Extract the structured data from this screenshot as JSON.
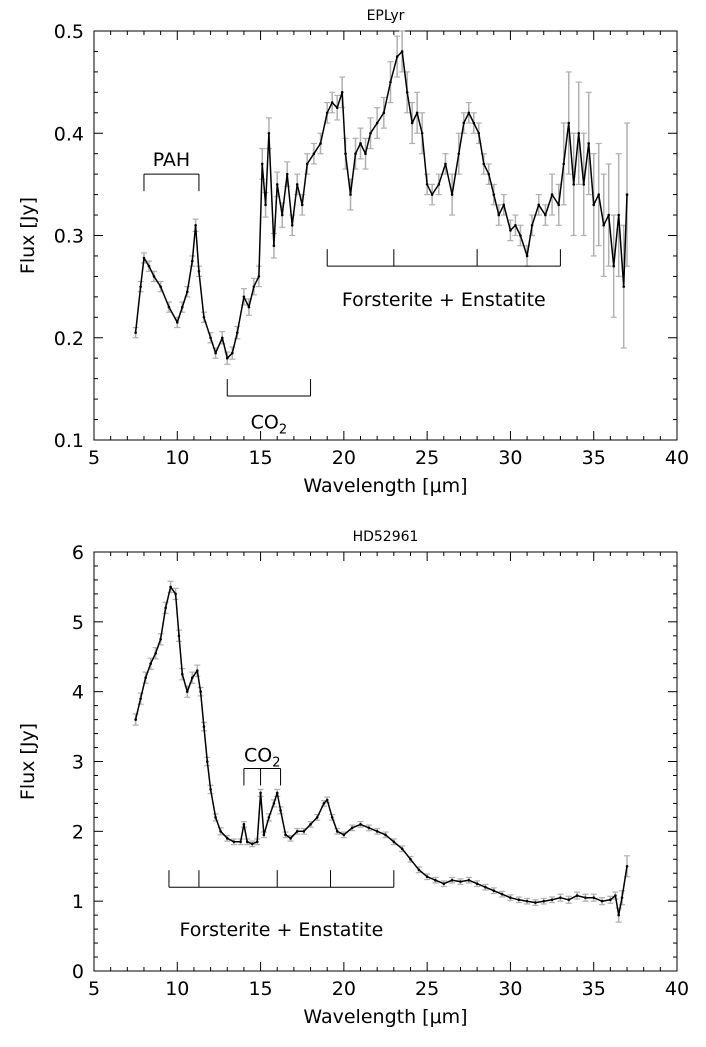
{
  "chart_data": [
    {
      "type": "line",
      "title": "EPLyr",
      "xlabel": "Wavelength [μm]",
      "ylabel": "Flux [Jy]",
      "xlim": [
        5,
        40
      ],
      "ylim": [
        0.1,
        0.5
      ],
      "xticks": [
        5,
        10,
        15,
        20,
        25,
        30,
        35,
        40
      ],
      "yticks": [
        0.1,
        0.2,
        0.3,
        0.4,
        0.5
      ],
      "grid": false,
      "error_bar_color": "#b0b0b0",
      "line_color": "#000000",
      "series": [
        {
          "x": [
            7.5,
            7.8,
            8.0,
            8.3,
            8.6,
            9.0,
            9.5,
            10.0,
            10.3,
            10.6,
            10.9,
            11.1,
            11.3,
            11.6,
            12.0,
            12.3,
            12.7,
            13.0,
            13.3,
            13.6,
            14.0,
            14.3,
            14.6,
            14.9,
            15.1,
            15.3,
            15.5,
            15.8,
            16.0,
            16.3,
            16.6,
            16.9,
            17.2,
            17.5,
            17.8,
            18.2,
            18.6,
            19.0,
            19.3,
            19.6,
            19.9,
            20.1,
            20.4,
            20.7,
            21.0,
            21.3,
            21.6,
            22.0,
            22.4,
            22.8,
            23.2,
            23.5,
            23.8,
            24.1,
            24.4,
            24.7,
            25.0,
            25.3,
            25.7,
            26.1,
            26.5,
            26.9,
            27.2,
            27.5,
            27.8,
            28.1,
            28.4,
            28.7,
            29.0,
            29.3,
            29.6,
            30.0,
            30.3,
            30.6,
            31.0,
            31.3,
            31.7,
            32.1,
            32.5,
            32.9,
            33.2,
            33.5,
            33.8,
            34.1,
            34.4,
            34.7,
            35.0,
            35.3,
            35.6,
            35.9,
            36.2,
            36.5,
            36.8,
            37.0
          ],
          "y": [
            0.205,
            0.25,
            0.278,
            0.27,
            0.26,
            0.25,
            0.23,
            0.215,
            0.23,
            0.245,
            0.275,
            0.31,
            0.265,
            0.22,
            0.2,
            0.185,
            0.2,
            0.18,
            0.185,
            0.205,
            0.24,
            0.23,
            0.25,
            0.26,
            0.37,
            0.33,
            0.4,
            0.29,
            0.35,
            0.32,
            0.36,
            0.31,
            0.35,
            0.33,
            0.37,
            0.38,
            0.39,
            0.42,
            0.43,
            0.425,
            0.44,
            0.38,
            0.34,
            0.38,
            0.39,
            0.38,
            0.4,
            0.41,
            0.42,
            0.45,
            0.475,
            0.48,
            0.44,
            0.41,
            0.42,
            0.4,
            0.35,
            0.34,
            0.35,
            0.37,
            0.34,
            0.38,
            0.41,
            0.42,
            0.41,
            0.4,
            0.37,
            0.36,
            0.34,
            0.32,
            0.33,
            0.305,
            0.31,
            0.3,
            0.28,
            0.31,
            0.33,
            0.32,
            0.34,
            0.33,
            0.37,
            0.41,
            0.35,
            0.4,
            0.35,
            0.39,
            0.33,
            0.34,
            0.31,
            0.32,
            0.27,
            0.32,
            0.25,
            0.34
          ],
          "err": [
            0.005,
            0.005,
            0.005,
            0.005,
            0.005,
            0.005,
            0.005,
            0.005,
            0.005,
            0.005,
            0.005,
            0.006,
            0.005,
            0.005,
            0.005,
            0.005,
            0.006,
            0.006,
            0.006,
            0.006,
            0.008,
            0.008,
            0.008,
            0.01,
            0.015,
            0.012,
            0.015,
            0.012,
            0.012,
            0.012,
            0.012,
            0.01,
            0.01,
            0.01,
            0.01,
            0.01,
            0.01,
            0.01,
            0.01,
            0.012,
            0.015,
            0.015,
            0.015,
            0.015,
            0.015,
            0.015,
            0.015,
            0.015,
            0.015,
            0.02,
            0.02,
            0.02,
            0.02,
            0.02,
            0.02,
            0.02,
            0.01,
            0.01,
            0.01,
            0.01,
            0.02,
            0.02,
            0.01,
            0.01,
            0.01,
            0.01,
            0.01,
            0.01,
            0.01,
            0.01,
            0.01,
            0.01,
            0.01,
            0.01,
            0.01,
            0.01,
            0.01,
            0.01,
            0.02,
            0.02,
            0.04,
            0.05,
            0.05,
            0.05,
            0.05,
            0.05,
            0.05,
            0.05,
            0.05,
            0.05,
            0.05,
            0.06,
            0.06,
            0.07
          ]
        }
      ],
      "annotations": [
        {
          "label": "PAH",
          "bracket": [
            8,
            11.3
          ],
          "ticks": [],
          "y": 0.36,
          "direction": "down",
          "label_y": 0.375
        },
        {
          "label": "CO",
          "subscript": "2",
          "bracket": [
            13,
            18
          ],
          "ticks": [],
          "y": 0.143,
          "direction": "up",
          "label_y": 0.118
        },
        {
          "label": "Forsterite + Enstatite",
          "bracket": [
            19,
            33
          ],
          "ticks": [
            23,
            28
          ],
          "y": 0.27,
          "direction": "up",
          "label_y": 0.238
        }
      ]
    },
    {
      "type": "line",
      "title": "HD52961",
      "xlabel": "Wavelength [μm]",
      "ylabel": "Flux [Jy]",
      "xlim": [
        5,
        40
      ],
      "ylim": [
        0,
        6
      ],
      "xticks": [
        5,
        10,
        15,
        20,
        25,
        30,
        35,
        40
      ],
      "yticks": [
        0,
        1,
        2,
        3,
        4,
        5,
        6
      ],
      "grid": false,
      "error_bar_color": "#b0b0b0",
      "line_color": "#000000",
      "series": [
        {
          "x": [
            7.5,
            7.8,
            8.1,
            8.4,
            8.7,
            9.0,
            9.3,
            9.6,
            9.9,
            10.1,
            10.3,
            10.6,
            10.9,
            11.2,
            11.4,
            11.6,
            11.8,
            12.0,
            12.3,
            12.6,
            13.0,
            13.4,
            13.8,
            14.0,
            14.2,
            14.5,
            14.8,
            15.0,
            15.2,
            15.5,
            15.8,
            16.0,
            16.2,
            16.5,
            16.8,
            17.2,
            17.6,
            18.0,
            18.4,
            18.8,
            19.0,
            19.3,
            19.6,
            20.0,
            20.5,
            21.0,
            21.5,
            22.0,
            22.5,
            23.0,
            23.5,
            24.0,
            24.5,
            25.0,
            25.5,
            26.0,
            26.5,
            27.0,
            27.5,
            28.0,
            28.5,
            29.0,
            29.5,
            30.0,
            30.5,
            31.0,
            31.5,
            32.0,
            32.5,
            33.0,
            33.5,
            34.0,
            34.5,
            35.0,
            35.5,
            36.0,
            36.3,
            36.5,
            36.7,
            37.0
          ],
          "y": [
            3.6,
            3.9,
            4.2,
            4.4,
            4.55,
            4.75,
            5.2,
            5.5,
            5.4,
            4.8,
            4.25,
            4.0,
            4.2,
            4.3,
            4.0,
            3.5,
            3.0,
            2.6,
            2.2,
            2.0,
            1.9,
            1.85,
            1.85,
            2.1,
            1.85,
            1.82,
            1.85,
            2.55,
            1.95,
            2.2,
            2.4,
            2.55,
            2.3,
            1.95,
            1.9,
            2.0,
            2.0,
            2.1,
            2.2,
            2.4,
            2.45,
            2.2,
            2.0,
            1.95,
            2.05,
            2.1,
            2.05,
            2.0,
            1.95,
            1.85,
            1.75,
            1.6,
            1.45,
            1.35,
            1.3,
            1.25,
            1.3,
            1.28,
            1.3,
            1.25,
            1.2,
            1.15,
            1.1,
            1.05,
            1.02,
            1.0,
            0.98,
            1.0,
            1.02,
            1.05,
            1.02,
            1.08,
            1.05,
            1.05,
            1.0,
            1.02,
            1.08,
            0.8,
            1.05,
            1.5
          ],
          "err": [
            0.08,
            0.08,
            0.08,
            0.08,
            0.08,
            0.08,
            0.08,
            0.08,
            0.08,
            0.08,
            0.08,
            0.08,
            0.08,
            0.08,
            0.06,
            0.06,
            0.06,
            0.06,
            0.05,
            0.05,
            0.04,
            0.04,
            0.04,
            0.04,
            0.04,
            0.04,
            0.04,
            0.05,
            0.04,
            0.05,
            0.05,
            0.05,
            0.05,
            0.04,
            0.04,
            0.04,
            0.04,
            0.04,
            0.04,
            0.04,
            0.04,
            0.04,
            0.04,
            0.04,
            0.04,
            0.04,
            0.04,
            0.04,
            0.04,
            0.04,
            0.04,
            0.04,
            0.04,
            0.04,
            0.04,
            0.04,
            0.04,
            0.04,
            0.04,
            0.04,
            0.04,
            0.04,
            0.04,
            0.04,
            0.04,
            0.04,
            0.04,
            0.04,
            0.04,
            0.05,
            0.05,
            0.05,
            0.05,
            0.05,
            0.05,
            0.05,
            0.05,
            0.1,
            0.1,
            0.15
          ]
        }
      ],
      "annotations": [
        {
          "label": "CO",
          "subscript": "2",
          "bracket": [
            14,
            16.2
          ],
          "ticks": [
            15
          ],
          "y": 2.9,
          "direction": "down",
          "label_y": 3.1
        },
        {
          "label": "Forsterite + Enstatite",
          "bracket": [
            9.5,
            23
          ],
          "ticks": [
            11.3,
            16,
            19.2
          ],
          "y": 1.2,
          "direction": "up",
          "label_y": 0.6
        }
      ]
    }
  ]
}
